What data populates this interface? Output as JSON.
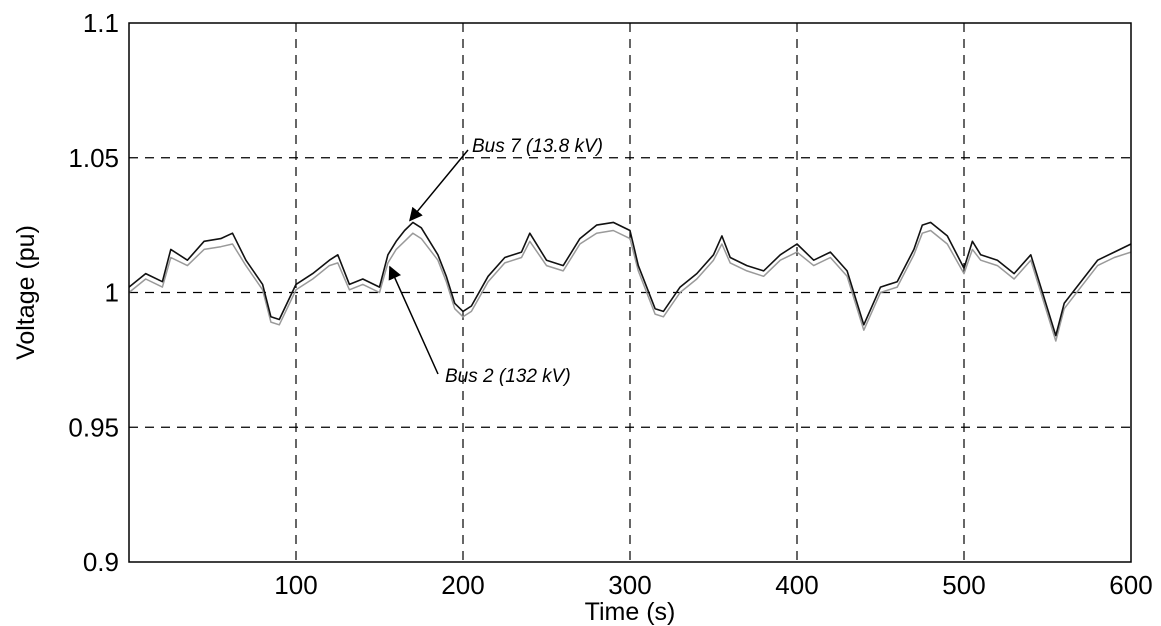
{
  "chart_data": {
    "type": "line",
    "title": "",
    "xlabel": "Time (s)",
    "ylabel": "Voltage (pu)",
    "xlim": [
      0,
      600
    ],
    "ylim": [
      0.9,
      1.1
    ],
    "xticks": [
      100,
      200,
      300,
      400,
      500,
      600
    ],
    "xtick_labels": [
      "100",
      "200",
      "300",
      "400",
      "500",
      "600"
    ],
    "yticks": [
      0.9,
      0.95,
      1.0,
      1.05,
      1.1
    ],
    "ytick_labels": [
      "0.9",
      "0.95",
      "1",
      "1.05",
      "1.1"
    ],
    "grid": true,
    "grid_style": "dashed",
    "colors": {
      "bus7": "#111111",
      "bus2": "#9a9a9a",
      "grid": "#000000"
    },
    "x": [
      0,
      10,
      20,
      25,
      35,
      45,
      55,
      62,
      70,
      80,
      85,
      90,
      100,
      110,
      120,
      125,
      132,
      140,
      150,
      155,
      160,
      165,
      170,
      175,
      185,
      190,
      195,
      200,
      205,
      215,
      225,
      235,
      240,
      250,
      260,
      270,
      280,
      290,
      300,
      305,
      310,
      315,
      320,
      330,
      340,
      350,
      355,
      360,
      370,
      380,
      390,
      400,
      410,
      420,
      430,
      440,
      450,
      460,
      470,
      475,
      480,
      490,
      500,
      505,
      510,
      520,
      530,
      540,
      550,
      555,
      560,
      570,
      580,
      590,
      600
    ],
    "series": [
      {
        "name": "Bus 7 (13.8 kV)",
        "values": [
          1.002,
          1.007,
          1.004,
          1.016,
          1.012,
          1.019,
          1.02,
          1.022,
          1.012,
          1.003,
          0.991,
          0.99,
          1.003,
          1.007,
          1.012,
          1.014,
          1.003,
          1.005,
          1.002,
          1.014,
          1.019,
          1.023,
          1.026,
          1.024,
          1.014,
          1.006,
          0.996,
          0.993,
          0.995,
          1.006,
          1.013,
          1.015,
          1.022,
          1.012,
          1.01,
          1.02,
          1.025,
          1.026,
          1.023,
          1.01,
          1.002,
          0.994,
          0.993,
          1.002,
          1.007,
          1.014,
          1.021,
          1.013,
          1.01,
          1.008,
          1.014,
          1.018,
          1.012,
          1.015,
          1.008,
          0.988,
          1.002,
          1.004,
          1.016,
          1.025,
          1.026,
          1.021,
          1.009,
          1.019,
          1.014,
          1.012,
          1.007,
          1.014,
          0.994,
          0.984,
          0.996,
          1.004,
          1.012,
          1.015,
          1.018
        ]
      },
      {
        "name": "Bus 2 (132 kV)",
        "values": [
          1.0,
          1.005,
          1.002,
          1.013,
          1.01,
          1.016,
          1.017,
          1.018,
          1.01,
          1.001,
          0.989,
          0.988,
          1.001,
          1.005,
          1.01,
          1.011,
          1.001,
          1.003,
          1.0,
          1.011,
          1.016,
          1.019,
          1.022,
          1.02,
          1.012,
          1.004,
          0.994,
          0.991,
          0.993,
          1.004,
          1.011,
          1.013,
          1.019,
          1.01,
          1.008,
          1.018,
          1.022,
          1.023,
          1.02,
          1.008,
          1.0,
          0.992,
          0.991,
          1.0,
          1.005,
          1.012,
          1.018,
          1.011,
          1.008,
          1.006,
          1.012,
          1.015,
          1.01,
          1.013,
          1.006,
          0.986,
          1.0,
          1.002,
          1.014,
          1.022,
          1.023,
          1.018,
          1.007,
          1.016,
          1.012,
          1.01,
          1.005,
          1.012,
          0.992,
          0.982,
          0.994,
          1.002,
          1.01,
          1.013,
          1.015
        ]
      }
    ],
    "annotations": [
      {
        "text": "Bus 7 (13.8 kV)",
        "series": 0,
        "x": 170
      },
      {
        "text": "Bus 2 (132 kV)",
        "series": 1,
        "x": 155
      }
    ]
  }
}
